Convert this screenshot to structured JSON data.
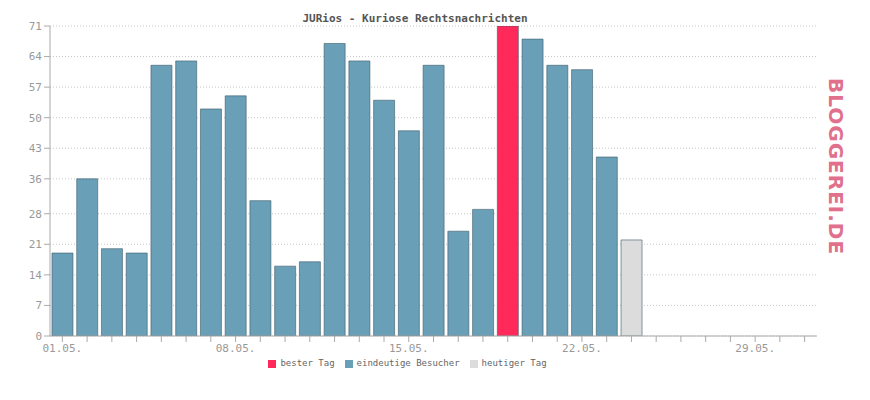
{
  "chart_data": {
    "type": "bar",
    "title": "JURios - Kuriose Rechtsnachrichten",
    "watermark": "BLOGGEREI.DE",
    "categories": [
      "01.05.",
      null,
      null,
      null,
      null,
      null,
      null,
      "08.05.",
      null,
      null,
      null,
      null,
      null,
      null,
      "15.05.",
      null,
      null,
      null,
      null,
      null,
      null,
      "22.05.",
      null,
      null,
      null,
      null,
      null,
      null,
      "29.05.",
      null,
      null
    ],
    "series": [
      {
        "name": "eindeutige Besucher",
        "color": "#6a9fb8",
        "values": [
          19,
          36,
          20,
          19,
          62,
          63,
          52,
          55,
          31,
          16,
          17,
          67,
          63,
          54,
          47,
          62,
          24,
          29,
          null,
          68,
          62,
          61,
          41,
          null,
          null,
          null,
          null,
          null,
          null,
          null,
          null
        ]
      },
      {
        "name": "bester Tag",
        "color": "#ff2a5a",
        "values": [
          null,
          null,
          null,
          null,
          null,
          null,
          null,
          null,
          null,
          null,
          null,
          null,
          null,
          null,
          null,
          null,
          null,
          null,
          71,
          null,
          null,
          null,
          null,
          null,
          null,
          null,
          null,
          null,
          null,
          null,
          null
        ]
      },
      {
        "name": "heutiger Tag",
        "color": "#dcdcdc",
        "values": [
          null,
          null,
          null,
          null,
          null,
          null,
          null,
          null,
          null,
          null,
          null,
          null,
          null,
          null,
          null,
          null,
          null,
          null,
          null,
          null,
          null,
          null,
          null,
          22,
          null,
          null,
          null,
          null,
          null,
          null,
          null
        ]
      }
    ],
    "stacked": true,
    "ylim": [
      0,
      71
    ],
    "yticks": [
      0,
      7,
      14,
      21,
      28,
      36,
      43,
      50,
      57,
      64,
      71
    ],
    "grid": true,
    "legend": "bottom"
  }
}
